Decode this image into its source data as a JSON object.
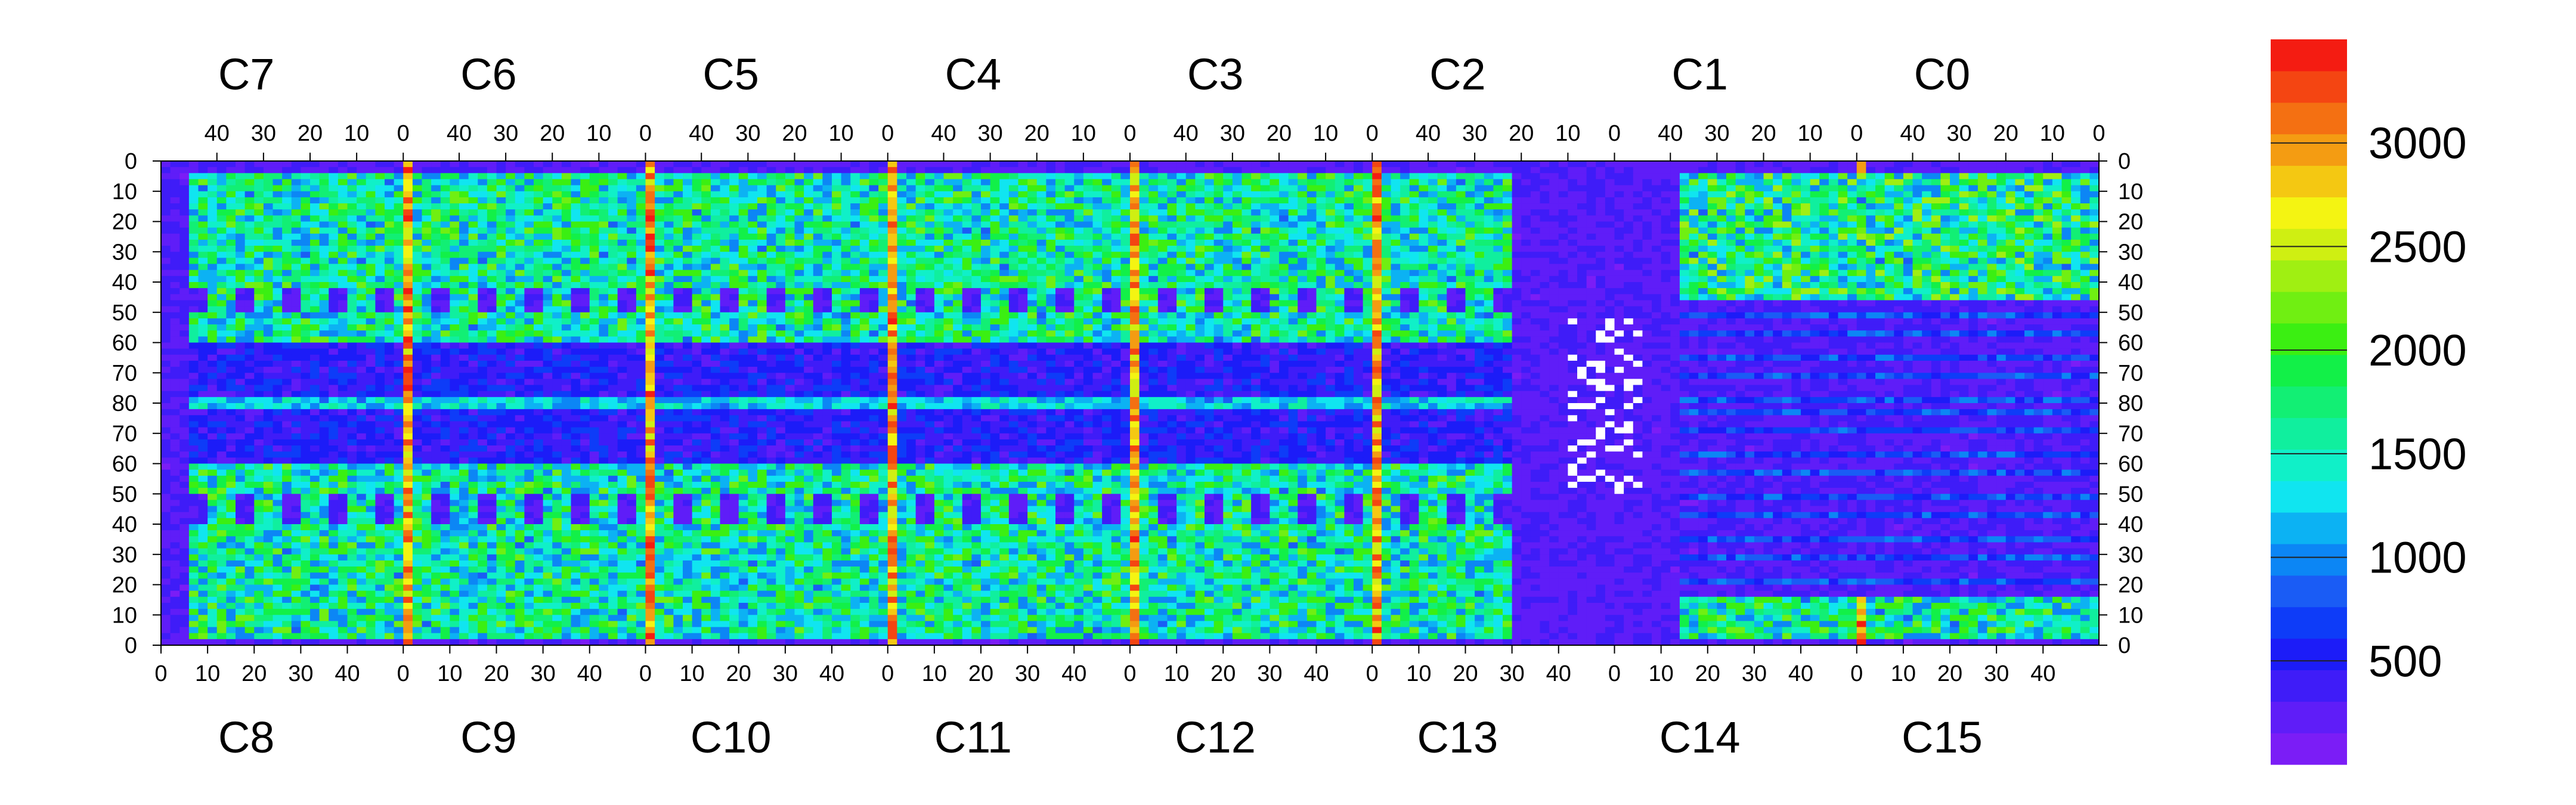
{
  "chart_data": {
    "type": "heatmap",
    "title": "",
    "chips_top": [
      "C7",
      "C6",
      "C5",
      "C4",
      "C3",
      "C2",
      "C1",
      "C0"
    ],
    "chips_bottom": [
      "C8",
      "C9",
      "C10",
      "C11",
      "C12",
      "C13",
      "C14",
      "C15"
    ],
    "x_ticks_top": [
      "40",
      "30",
      "20",
      "10",
      "0"
    ],
    "x_ticks_bottom": [
      "0",
      "10",
      "20",
      "30",
      "40"
    ],
    "y_ticks": [
      "0",
      "10",
      "20",
      "30",
      "40",
      "50",
      "60",
      "70",
      "80",
      "70",
      "60",
      "50",
      "40",
      "30",
      "20",
      "10",
      "0"
    ],
    "columns_per_chip": 52,
    "rows_per_half": 80,
    "zlim": [
      0,
      3500
    ],
    "colorbar_ticks": [
      500,
      1000,
      1500,
      2000,
      2500,
      3000
    ],
    "colorbar_labels": [
      "500",
      "1000",
      "1500",
      "2000",
      "2500",
      "3000"
    ],
    "palette": [
      "#7b1df6",
      "#5f1df8",
      "#3f1cf8",
      "#1c1cf8",
      "#0e3cf8",
      "#1a5cf5",
      "#0c86f5",
      "#0cb2f3",
      "#10e5f0",
      "#10f0c8",
      "#10ef9e",
      "#12ef74",
      "#12f048",
      "#3bef12",
      "#70ef12",
      "#a0ef12",
      "#cfef12",
      "#f4f412",
      "#f4c812",
      "#f49c12",
      "#f47012",
      "#f44512",
      "#f41c12"
    ],
    "hot_columns": [
      "C7/C6 border",
      "C6/C5 border",
      "C5/C4 border",
      "C4/C3 border",
      "C3/C2 border",
      "C1/C0 border"
    ],
    "low_region": "C13-C14 right half / C2-C1 top (mostly < 500)"
  }
}
